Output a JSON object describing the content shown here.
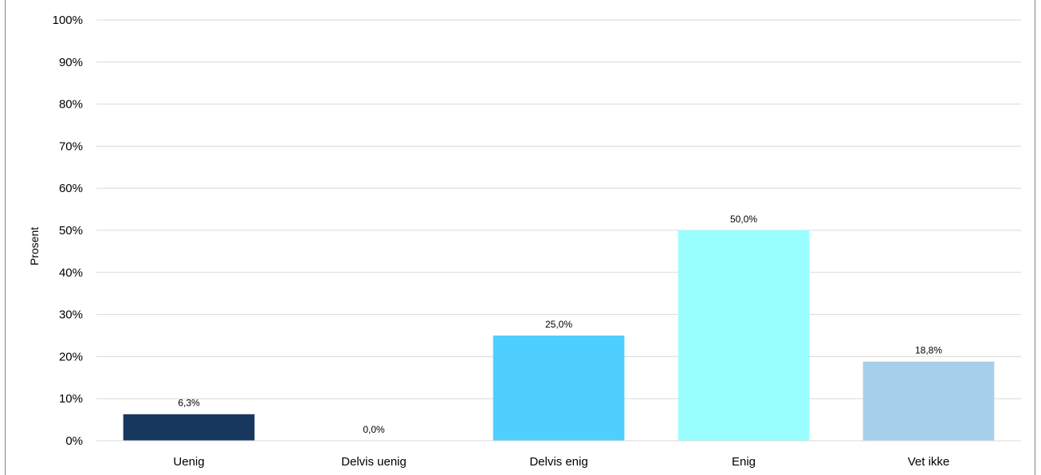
{
  "chart_data": {
    "type": "bar",
    "title": "",
    "xlabel": "",
    "ylabel": "Prosent",
    "ylim": [
      0,
      100
    ],
    "yticks": [
      "0%",
      "10%",
      "20%",
      "30%",
      "40%",
      "50%",
      "60%",
      "70%",
      "80%",
      "90%",
      "100%"
    ],
    "categories": [
      "Uenig",
      "Delvis uenig",
      "Delvis enig",
      "Enig",
      "Vet ikke"
    ],
    "values": [
      6.3,
      0.0,
      25.0,
      50.0,
      18.8
    ],
    "data_labels": [
      "6,3%",
      "0,0%",
      "25,0%",
      "50,0%",
      "18,8%"
    ],
    "colors": [
      "#17375e",
      "#8db3e2",
      "#4fcfff",
      "#99ffff",
      "#a6d0ea"
    ],
    "grid": true,
    "legend": "none"
  }
}
